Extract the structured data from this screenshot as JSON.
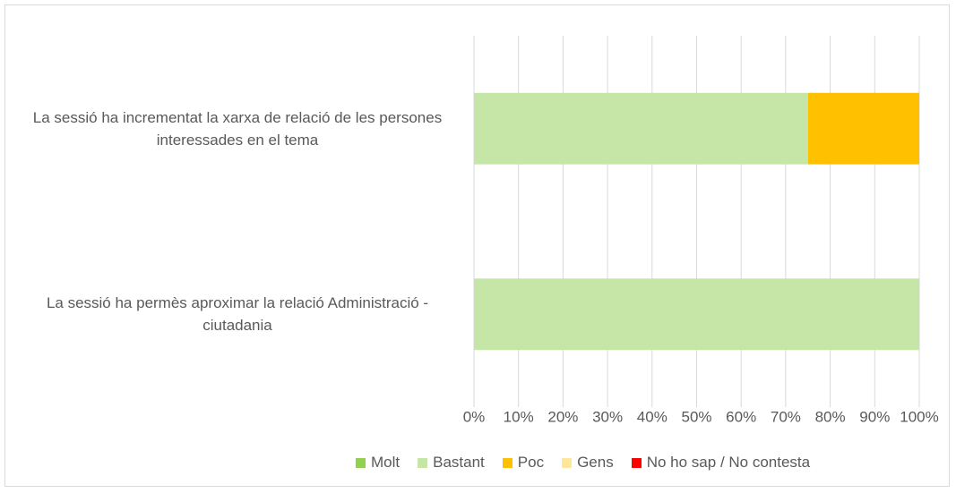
{
  "chart_data": {
    "type": "bar",
    "orientation": "horizontal",
    "stacked": true,
    "categories": [
      "La sessió ha incrementat la xarxa de relació de les persones interessades en el tema",
      "La sessió ha permès aproximar la relació Administració - ciutadania"
    ],
    "series": [
      {
        "name": "Molt",
        "color": "#92d050",
        "values": [
          0,
          0
        ]
      },
      {
        "name": "Bastant",
        "color": "#c5e6a6",
        "values": [
          75,
          100
        ]
      },
      {
        "name": "Poc",
        "color": "#ffc000",
        "values": [
          25,
          0
        ]
      },
      {
        "name": "Gens",
        "color": "#ffe699",
        "values": [
          0,
          0
        ]
      },
      {
        "name": "No ho sap / No contesta",
        "color": "#ff0000",
        "values": [
          0,
          0
        ]
      }
    ],
    "xlim": [
      0,
      100
    ],
    "xticks": [
      {
        "value": 0,
        "label": "0%"
      },
      {
        "value": 10,
        "label": "10%"
      },
      {
        "value": 20,
        "label": "20%"
      },
      {
        "value": 30,
        "label": "30%"
      },
      {
        "value": 40,
        "label": "40%"
      },
      {
        "value": 50,
        "label": "50%"
      },
      {
        "value": 60,
        "label": "60%"
      },
      {
        "value": 70,
        "label": "70%"
      },
      {
        "value": 80,
        "label": "80%"
      },
      {
        "value": 90,
        "label": "90%"
      },
      {
        "value": 100,
        "label": "100%"
      }
    ],
    "grid": true,
    "legend": "bottom"
  }
}
